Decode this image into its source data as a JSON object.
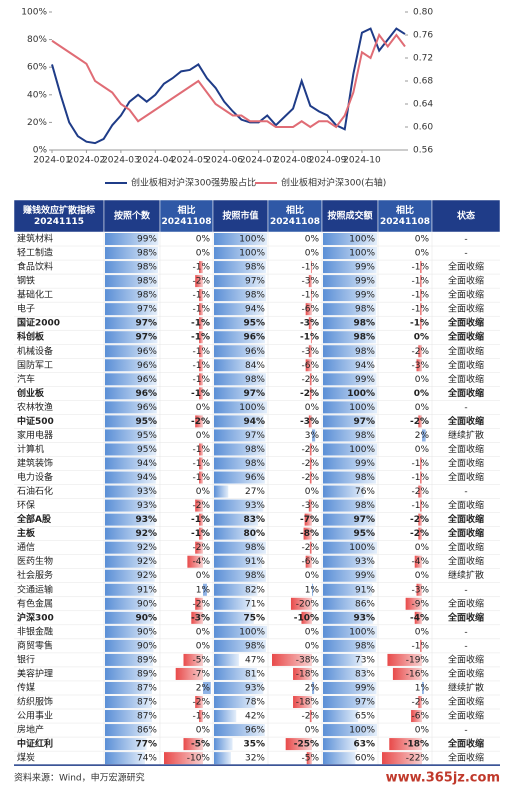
{
  "chart_data": {
    "type": "line",
    "categories": [
      "2024-01",
      null,
      null,
      null,
      "2024-02",
      null,
      null,
      null,
      "2024-03",
      null,
      null,
      null,
      "2024-04",
      null,
      null,
      null,
      "2024-05",
      null,
      null,
      null,
      "2024-06",
      null,
      null,
      null,
      "2024-07",
      null,
      null,
      null,
      "2024-08",
      null,
      null,
      null,
      "2024-09",
      null,
      null,
      null,
      "2024-10",
      null,
      null,
      null,
      null,
      null
    ],
    "series": [
      {
        "name": "创业板相对沪深300强势股占比",
        "color": "#1f3c88",
        "values": [
          62,
          40,
          20,
          10,
          6,
          5,
          8,
          18,
          25,
          35,
          40,
          35,
          40,
          48,
          52,
          57,
          58,
          62,
          52,
          45,
          35,
          28,
          22,
          20,
          20,
          25,
          18,
          24,
          30,
          50,
          32,
          28,
          25,
          18,
          15,
          55,
          85,
          88,
          72,
          80,
          88,
          84
        ]
      },
      {
        "name": "创业板相对沪深300(右轴)",
        "color": "#e06c75",
        "axis": "y2",
        "values": [
          0.75,
          0.74,
          0.73,
          0.72,
          0.71,
          0.68,
          0.67,
          0.66,
          0.64,
          0.63,
          0.61,
          0.62,
          0.63,
          0.64,
          0.65,
          0.66,
          0.67,
          0.68,
          0.66,
          0.64,
          0.63,
          0.62,
          0.62,
          0.61,
          0.61,
          0.61,
          0.6,
          0.6,
          0.6,
          0.61,
          0.6,
          0.61,
          0.61,
          0.6,
          0.62,
          0.66,
          0.73,
          0.72,
          0.76,
          0.74,
          0.76,
          0.74
        ]
      }
    ],
    "ylim": [
      0,
      100
    ],
    "yticks": [
      {
        "value": 0,
        "label": "0%"
      },
      {
        "value": 20,
        "label": "20%"
      },
      {
        "value": 40,
        "label": "40%"
      },
      {
        "value": 60,
        "label": "60%"
      },
      {
        "value": 80,
        "label": "80%"
      },
      {
        "value": 100,
        "label": "100%"
      }
    ],
    "y2lim": [
      0.56,
      0.8
    ],
    "y2ticks": [
      0.56,
      {
        "value": 0.6,
        "label": "0.60"
      },
      0.64,
      0.68,
      0.72,
      0.76,
      {
        "value": 0.8,
        "label": "0.80"
      }
    ],
    "legend": "bottom"
  },
  "table": {
    "header": [
      [
        "赚钱效应扩散指标",
        "20241115"
      ],
      [
        "按照个数"
      ],
      [
        "相比",
        "20241108"
      ],
      [
        "按照市值"
      ],
      [
        "相比",
        "20241108"
      ],
      [
        "按照成交额"
      ],
      [
        "相比",
        "20241108"
      ],
      [
        "状态"
      ]
    ],
    "rows": [
      {
        "name": "建筑材料",
        "cells": [
          "99%",
          "0%",
          "100%",
          "0%",
          "100%",
          "0%"
        ],
        "status": "-"
      },
      {
        "name": "轻工制造",
        "cells": [
          "98%",
          "0%",
          "100%",
          "0%",
          "100%",
          "0%"
        ],
        "status": "-"
      },
      {
        "name": "食品饮料",
        "cells": [
          "98%",
          "-1%",
          "98%",
          "-1%",
          "99%",
          "-1%"
        ],
        "status": "全面收缩"
      },
      {
        "name": "钢铁",
        "cells": [
          "98%",
          "-2%",
          "97%",
          "-3%",
          "99%",
          "-1%"
        ],
        "status": "全面收缩"
      },
      {
        "name": "基础化工",
        "cells": [
          "98%",
          "-1%",
          "98%",
          "-1%",
          "99%",
          "-1%"
        ],
        "status": "全面收缩"
      },
      {
        "name": "电子",
        "cells": [
          "97%",
          "-1%",
          "94%",
          "-6%",
          "98%",
          "-1%"
        ],
        "status": "全面收缩"
      },
      {
        "name": "国证2000",
        "bold": true,
        "cells": [
          "97%",
          "-1%",
          "95%",
          "-3%",
          "98%",
          "-1%"
        ],
        "status": "全面收缩"
      },
      {
        "name": "科创板",
        "bold": true,
        "cells": [
          "97%",
          "-1%",
          "96%",
          "-1%",
          "98%",
          "0%"
        ],
        "status": "全面收缩"
      },
      {
        "name": "机械设备",
        "cells": [
          "96%",
          "-1%",
          "96%",
          "-3%",
          "98%",
          "-2%"
        ],
        "status": "全面收缩"
      },
      {
        "name": "国防军工",
        "cells": [
          "96%",
          "-1%",
          "84%",
          "-6%",
          "94%",
          "-3%"
        ],
        "status": "全面收缩"
      },
      {
        "name": "汽车",
        "cells": [
          "96%",
          "-1%",
          "98%",
          "-2%",
          "99%",
          "0%"
        ],
        "status": "全面收缩"
      },
      {
        "name": "创业板",
        "bold": true,
        "cells": [
          "96%",
          "-1%",
          "97%",
          "-2%",
          "100%",
          "0%"
        ],
        "status": "全面收缩"
      },
      {
        "name": "农林牧渔",
        "cells": [
          "96%",
          "0%",
          "100%",
          "0%",
          "100%",
          "0%"
        ],
        "status": "-"
      },
      {
        "name": "中证500",
        "bold": true,
        "cells": [
          "95%",
          "-2%",
          "94%",
          "-3%",
          "97%",
          "-2%"
        ],
        "status": "全面收缩"
      },
      {
        "name": "家用电器",
        "cells": [
          "95%",
          "0%",
          "97%",
          "3%",
          "98%",
          "2%"
        ],
        "status": "继续扩散"
      },
      {
        "name": "计算机",
        "cells": [
          "95%",
          "-1%",
          "98%",
          "-2%",
          "100%",
          "0%"
        ],
        "status": "全面收缩"
      },
      {
        "name": "建筑装饰",
        "cells": [
          "94%",
          "-1%",
          "98%",
          "-2%",
          "99%",
          "-1%"
        ],
        "status": "全面收缩"
      },
      {
        "name": "电力设备",
        "cells": [
          "94%",
          "-1%",
          "96%",
          "-2%",
          "98%",
          "-1%"
        ],
        "status": "全面收缩"
      },
      {
        "name": "石油石化",
        "cells": [
          "93%",
          "0%",
          "27%",
          "0%",
          "76%",
          "-2%"
        ],
        "status": "-"
      },
      {
        "name": "环保",
        "cells": [
          "93%",
          "-2%",
          "93%",
          "-3%",
          "98%",
          "-1%"
        ],
        "status": "全面收缩"
      },
      {
        "name": "全部A股",
        "bold": true,
        "cells": [
          "93%",
          "-1%",
          "83%",
          "-7%",
          "97%",
          "-2%"
        ],
        "status": "全面收缩"
      },
      {
        "name": "主板",
        "bold": true,
        "cells": [
          "92%",
          "-1%",
          "80%",
          "-8%",
          "95%",
          "-2%"
        ],
        "status": "全面收缩"
      },
      {
        "name": "通信",
        "cells": [
          "92%",
          "-2%",
          "98%",
          "-2%",
          "100%",
          "0%"
        ],
        "status": "全面收缩"
      },
      {
        "name": "医药生物",
        "cells": [
          "92%",
          "-4%",
          "91%",
          "-6%",
          "93%",
          "-4%"
        ],
        "status": "全面收缩"
      },
      {
        "name": "社会服务",
        "cells": [
          "92%",
          "0%",
          "98%",
          "0%",
          "99%",
          "0%"
        ],
        "status": "继续扩散"
      },
      {
        "name": "交通运输",
        "cells": [
          "91%",
          "1%",
          "82%",
          "1%",
          "91%",
          "-3%"
        ],
        "status": "-"
      },
      {
        "name": "有色金属",
        "cells": [
          "90%",
          "-2%",
          "71%",
          "-20%",
          "86%",
          "-9%"
        ],
        "status": "全面收缩"
      },
      {
        "name": "沪深300",
        "bold": true,
        "cells": [
          "90%",
          "-3%",
          "75%",
          "-10%",
          "93%",
          "-4%"
        ],
        "status": "全面收缩"
      },
      {
        "name": "非银金融",
        "cells": [
          "90%",
          "0%",
          "100%",
          "0%",
          "100%",
          "0%"
        ],
        "status": "-"
      },
      {
        "name": "商贸零售",
        "cells": [
          "90%",
          "0%",
          "98%",
          "0%",
          "98%",
          "-1%"
        ],
        "status": "-"
      },
      {
        "name": "银行",
        "cells": [
          "89%",
          "-5%",
          "47%",
          "-38%",
          "73%",
          "-19%"
        ],
        "status": "全面收缩"
      },
      {
        "name": "美容护理",
        "cells": [
          "89%",
          "-7%",
          "81%",
          "-18%",
          "83%",
          "-16%"
        ],
        "status": "全面收缩"
      },
      {
        "name": "传媒",
        "cells": [
          "87%",
          "2%",
          "93%",
          "2%",
          "99%",
          "1%"
        ],
        "status": "继续扩散"
      },
      {
        "name": "纺织服饰",
        "cells": [
          "87%",
          "-2%",
          "78%",
          "-18%",
          "97%",
          "-2%"
        ],
        "status": "全面收缩"
      },
      {
        "name": "公用事业",
        "cells": [
          "87%",
          "-1%",
          "42%",
          "-2%",
          "65%",
          "-6%"
        ],
        "status": "全面收缩"
      },
      {
        "name": "房地产",
        "cells": [
          "86%",
          "0%",
          "96%",
          "0%",
          "100%",
          "0%"
        ],
        "status": "-"
      },
      {
        "name": "中证红利",
        "bold": true,
        "cells": [
          "77%",
          "-5%",
          "35%",
          "-25%",
          "63%",
          "-18%"
        ],
        "status": "全面收缩"
      },
      {
        "name": "煤炭",
        "cells": [
          "74%",
          "-10%",
          "32%",
          "-5%",
          "60%",
          "-22%"
        ],
        "status": "全面收缩"
      }
    ]
  },
  "source": "资料来源：Wind，申万宏源研究",
  "watermark": "www.365jz.com"
}
